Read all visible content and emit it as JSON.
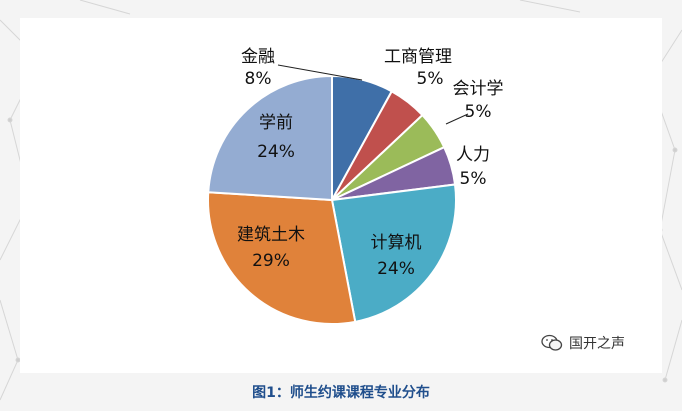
{
  "chart_data": {
    "type": "pie",
    "slices": [
      {
        "label": "金融",
        "pct_text": "8%",
        "value": 8,
        "color": "#3f6fa8"
      },
      {
        "label": "工商管理",
        "pct_text": "5%",
        "value": 5,
        "color": "#c0504d"
      },
      {
        "label": "会计学",
        "pct_text": "5%",
        "value": 5,
        "color": "#9bbb59"
      },
      {
        "label": "人力",
        "pct_text": "5%",
        "value": 5,
        "color": "#8064a2"
      },
      {
        "label": "计算机",
        "pct_text": "24%",
        "value": 24,
        "color": "#4bacc6"
      },
      {
        "label": "建筑土木",
        "pct_text": "29%",
        "value": 29,
        "color": "#e0823a"
      },
      {
        "label": "学前",
        "pct_text": "24%",
        "value": 24,
        "color": "#94acd2"
      }
    ]
  },
  "caption": "图1：师生约课课程专业分布",
  "watermark": {
    "text": "国开之声",
    "icon": "wechat-icon"
  }
}
